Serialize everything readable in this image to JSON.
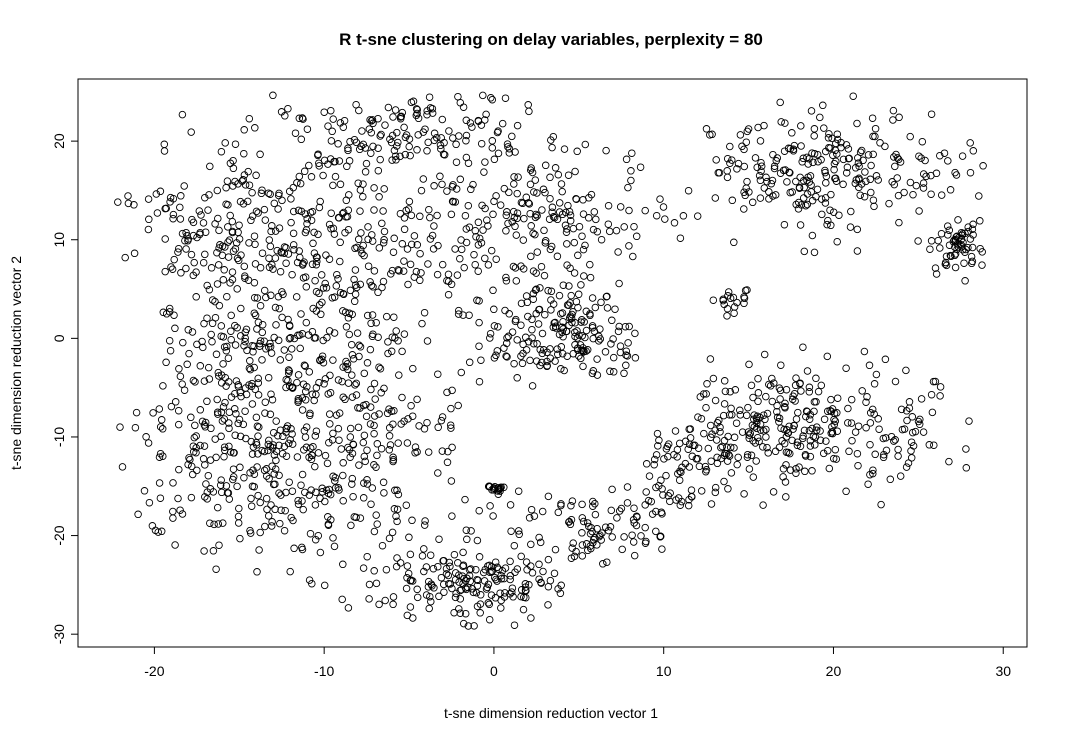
{
  "chart_data": {
    "type": "scatter",
    "title": "R t-sne clustering on delay variables, perplexity = 80",
    "xlabel": "t-sne dimension reduction vector 1",
    "ylabel": "t-sne dimension reduction vector 2",
    "xlim": [
      -24.5,
      31.4
    ],
    "ylim": [
      -31.3,
      26.3
    ],
    "xticks": [
      -20,
      -10,
      0,
      10,
      20,
      30
    ],
    "yticks": [
      -30,
      -20,
      -10,
      0,
      10,
      20
    ],
    "grid": false,
    "legend": "none",
    "marker": "open-circle",
    "color": "#000000",
    "seed": 20240,
    "clusters": [
      {
        "n": 420,
        "cx": -9.0,
        "cy": 8.0,
        "sx": 7.0,
        "sy": 8.0
      },
      {
        "n": 130,
        "cx": -5.0,
        "cy": 21.0,
        "sx": 4.0,
        "sy": 2.0
      },
      {
        "n": 110,
        "cx": -16.0,
        "cy": 11.0,
        "sx": 3.5,
        "sy": 3.5
      },
      {
        "n": 450,
        "cx": -12.0,
        "cy": -12.0,
        "sx": 5.5,
        "sy": 6.0
      },
      {
        "n": 130,
        "cx": -14.0,
        "cy": -2.0,
        "sx": 4.0,
        "sy": 4.0
      },
      {
        "n": 170,
        "cx": 4.0,
        "cy": 0.5,
        "sx": 2.2,
        "sy": 2.5
      },
      {
        "n": 140,
        "cx": 3.5,
        "cy": 12.0,
        "sx": 3.0,
        "sy": 4.0
      },
      {
        "n": 170,
        "cx": -1.5,
        "cy": -25.0,
        "sx": 3.0,
        "sy": 2.0
      },
      {
        "n": 80,
        "cx": 5.0,
        "cy": -19.0,
        "sx": 3.0,
        "sy": 2.0
      },
      {
        "n": 20,
        "cx": 0.0,
        "cy": -14.6,
        "sx": 0.3,
        "sy": 0.4
      },
      {
        "n": 260,
        "cx": 19.0,
        "cy": 17.0,
        "sx": 4.5,
        "sy": 3.0
      },
      {
        "n": 60,
        "cx": 27.5,
        "cy": 9.5,
        "sx": 0.8,
        "sy": 1.2
      },
      {
        "n": 330,
        "cx": 16.5,
        "cy": -9.0,
        "sx": 5.0,
        "sy": 3.0
      },
      {
        "n": 60,
        "cx": 10.0,
        "cy": -15.5,
        "sx": 2.5,
        "sy": 2.5
      },
      {
        "n": 18,
        "cx": 14.0,
        "cy": 3.5,
        "sx": 0.5,
        "sy": 0.8
      }
    ],
    "bounds": {
      "xmin": -22.2,
      "xmax": 29.3,
      "ymin": -29.2,
      "ymax": 24.8,
      "empty_regions": [
        {
          "x": [
            8.5,
            12.5
          ],
          "y": [
            -4.0,
            10.0
          ]
        },
        {
          "x": [
            -2.0,
            9.0
          ],
          "y": [
            -15.0,
            -5.0
          ]
        },
        {
          "x": [
            -22.5,
            -18.0
          ],
          "y": [
            -30.0,
            -22.5
          ]
        },
        {
          "x": [
            10.0,
            32.0
          ],
          "y": [
            -30.0,
            -17.5
          ]
        },
        {
          "x": [
            9.0,
            12.5
          ],
          "y": [
            15.0,
            26.0
          ]
        },
        {
          "x": [
            16.0,
            26.0
          ],
          "y": [
            0.0,
            8.0
          ]
        },
        {
          "x": [
            -24.0,
            -19.5
          ],
          "y": [
            15.5,
            26.0
          ]
        },
        {
          "x": [
            -24.0,
            -19.5
          ],
          "y": [
            -7.0,
            8.0
          ]
        },
        {
          "x": [
            4.0,
            10.0
          ],
          "y": [
            -30.0,
            -23.0
          ]
        },
        {
          "x": [
            8.0,
            12.0
          ],
          "y": [
            -9.0,
            -4.0
          ]
        }
      ]
    }
  }
}
